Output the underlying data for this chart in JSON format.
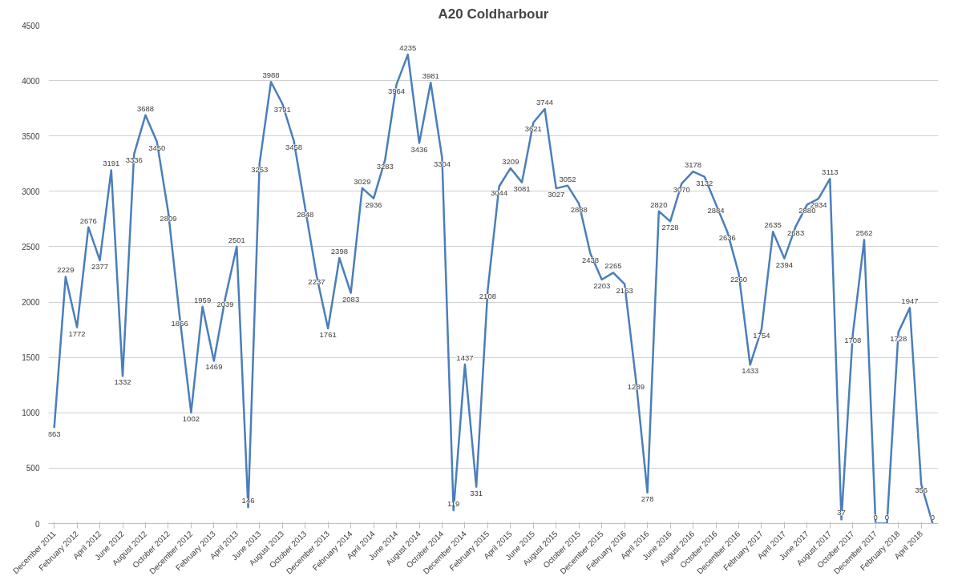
{
  "chart_data": {
    "type": "line",
    "title": "A20 Coldharbour",
    "categories": [
      "December 2011",
      null,
      "February 2012",
      null,
      "April 2012",
      null,
      "June 2012",
      null,
      "August 2012",
      null,
      "October 2012",
      null,
      "December 2012",
      null,
      "February 2013",
      null,
      "April 2013",
      null,
      "June 2013",
      null,
      "August 2013",
      null,
      "October 2013",
      null,
      "December 2013",
      null,
      "February 2014",
      null,
      "April 2014",
      null,
      "June 2014",
      null,
      "August 2014",
      null,
      "October 2014",
      null,
      "December 2014",
      null,
      "February 2015",
      null,
      "April 2015",
      null,
      "June 2015",
      null,
      "August 2015",
      null,
      "October 2015",
      null,
      "December 2015",
      null,
      "February 2016",
      null,
      "April 2016",
      null,
      "June 2016",
      null,
      "August 2016",
      null,
      "October 2016",
      null,
      "December 2016",
      null,
      "February 2017",
      null,
      "April 2017",
      null,
      "June 2017",
      null,
      "August 2017",
      null,
      "October 2017",
      null,
      "December 2017",
      null,
      "February 2018",
      null,
      "April 2018",
      null
    ],
    "series": [
      {
        "color": "#4a7ebb",
        "values": [
          863,
          2229,
          1772,
          2676,
          2377,
          3191,
          1332,
          3336,
          3688,
          3450,
          2809,
          1866,
          1002,
          1959,
          1469,
          2039,
          2501,
          146,
          3253,
          3988,
          3791,
          3458,
          2848,
          2237,
          1761,
          2398,
          2083,
          3029,
          2936,
          3283,
          3964,
          4235,
          3436,
          3981,
          3304,
          119,
          1437,
          331,
          2108,
          3044,
          3209,
          3081,
          3621,
          3744,
          3027,
          3052,
          2888,
          2438,
          2203,
          2265,
          2163,
          1289,
          278,
          2820,
          2728,
          3070,
          3178,
          3132,
          2884,
          2636,
          2260,
          1433,
          1754,
          2635,
          2394,
          2683,
          2880,
          2934,
          3113,
          37,
          1708,
          2562,
          0,
          0,
          1728,
          1947,
          356,
          0
        ]
      }
    ],
    "ylim": [
      0,
      4500
    ],
    "yticks": [
      0,
      500,
      1000,
      1500,
      2000,
      2500,
      3000,
      3500,
      4000,
      4500
    ],
    "grid": "y",
    "data_labels": true
  }
}
